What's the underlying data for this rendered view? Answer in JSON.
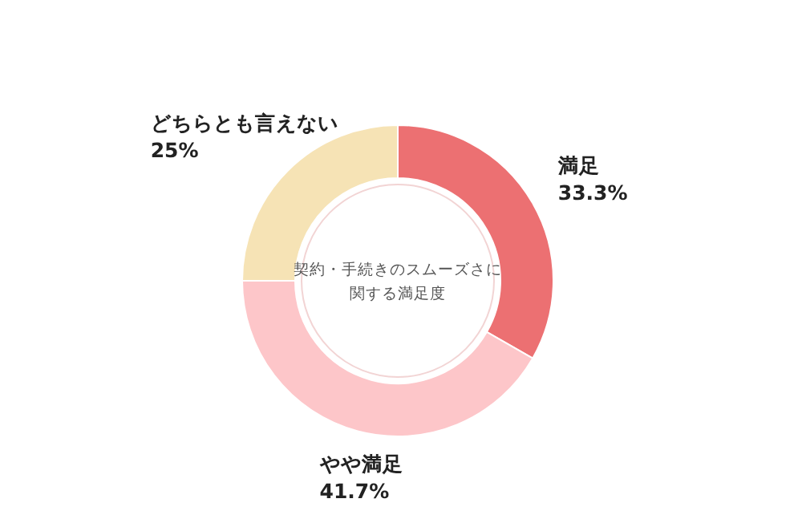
{
  "chart_data": {
    "type": "donut",
    "title": "契約・手続きのスムーズさに関する満足度",
    "categories": [
      "満足",
      "やや満足",
      "どちらとも言えない"
    ],
    "values": [
      33.3,
      41.7,
      25
    ],
    "value_labels": [
      "33.3%",
      "41.7%",
      "25%"
    ],
    "colors": [
      "#ec7072",
      "#fdc6c9",
      "#f6e3b5"
    ]
  }
}
